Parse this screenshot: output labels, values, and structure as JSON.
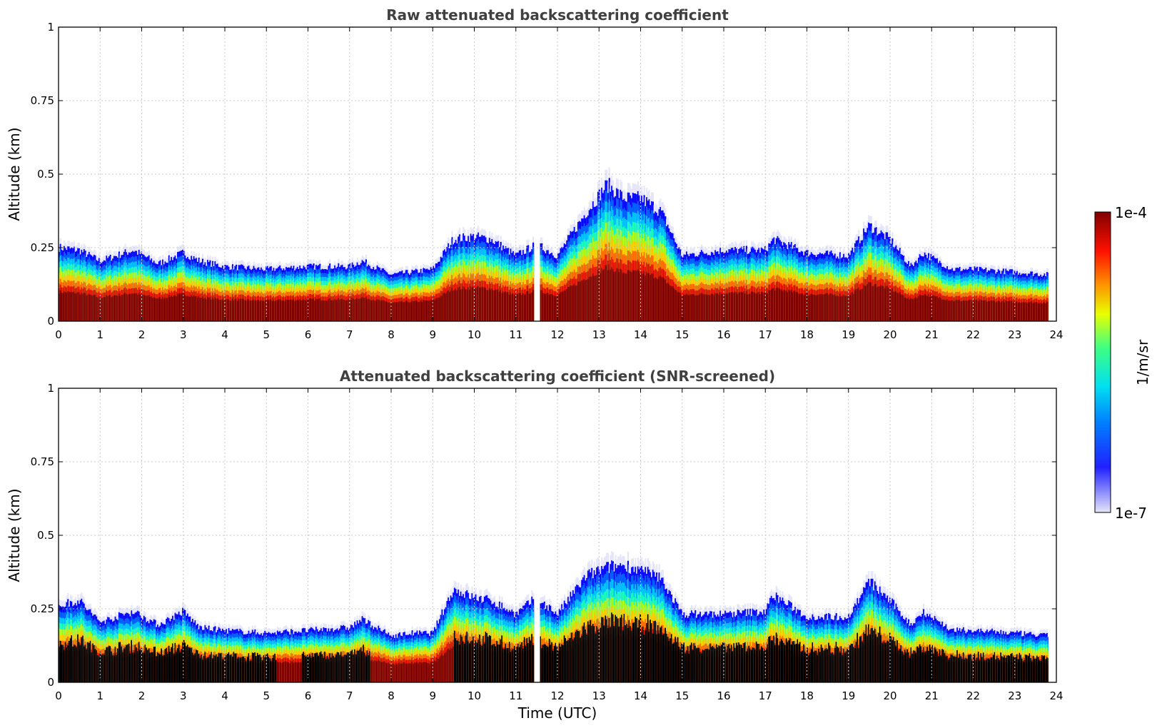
{
  "chart_data": [
    {
      "type": "heatmap",
      "title": "Raw attenuated backscattering coefficient",
      "xlabel": "",
      "ylabel": "Altitude (km)",
      "xlim": [
        0,
        24
      ],
      "ylim": [
        0,
        1
      ],
      "x_ticks": [
        "0",
        "1",
        "2",
        "3",
        "4",
        "5",
        "6",
        "7",
        "8",
        "9",
        "10",
        "11",
        "12",
        "13",
        "14",
        "15",
        "16",
        "17",
        "18",
        "19",
        "20",
        "21",
        "22",
        "23",
        "24"
      ],
      "y_ticks": [
        "0",
        "0.25",
        "0.5",
        "0.75",
        "1"
      ],
      "grid": true,
      "screened": false,
      "data_gap_hours": [
        11.4,
        11.55
      ],
      "data_end_hour": 23.8,
      "layer_top_km": {
        "hours": [
          0,
          0.5,
          1,
          1.8,
          2.4,
          3,
          3.4,
          4,
          5,
          6,
          7,
          7.3,
          8,
          8.5,
          9,
          9.5,
          10,
          10.4,
          11,
          11.5,
          12,
          12.7,
          13.2,
          13.6,
          14,
          14.5,
          15,
          16,
          17,
          17.2,
          18,
          19,
          19.5,
          20,
          20.5,
          20.8,
          21.5,
          22,
          23,
          23.8
        ],
        "values": [
          0.27,
          0.26,
          0.22,
          0.26,
          0.21,
          0.25,
          0.22,
          0.2,
          0.19,
          0.2,
          0.2,
          0.22,
          0.17,
          0.18,
          0.19,
          0.3,
          0.31,
          0.3,
          0.24,
          0.28,
          0.24,
          0.4,
          0.5,
          0.45,
          0.45,
          0.4,
          0.24,
          0.26,
          0.26,
          0.3,
          0.25,
          0.24,
          0.35,
          0.3,
          0.2,
          0.25,
          0.19,
          0.19,
          0.18,
          0.17
        ]
      }
    },
    {
      "type": "heatmap",
      "title": "Attenuated backscattering coefficient (SNR-screened)",
      "xlabel": "Time (UTC)",
      "ylabel": "Altitude (km)",
      "xlim": [
        0,
        24
      ],
      "ylim": [
        0,
        1
      ],
      "x_ticks": [
        "0",
        "1",
        "2",
        "3",
        "4",
        "5",
        "6",
        "7",
        "8",
        "9",
        "10",
        "11",
        "12",
        "13",
        "14",
        "15",
        "16",
        "17",
        "18",
        "19",
        "20",
        "21",
        "22",
        "23",
        "24"
      ],
      "y_ticks": [
        "0",
        "0.25",
        "0.5",
        "0.75",
        "1"
      ],
      "grid": true,
      "screened": true,
      "screened_out_color": "#000000",
      "data_gap_hours": [
        11.4,
        11.55
      ],
      "data_end_hour": 23.8,
      "layer_top_km": {
        "hours": [
          0,
          0.5,
          1,
          1.8,
          2.4,
          3,
          3.4,
          4,
          5,
          6,
          7,
          7.3,
          8,
          8.5,
          9,
          9.5,
          10,
          10.4,
          11,
          11.5,
          12,
          12.7,
          13.2,
          13.6,
          14,
          14.5,
          15,
          16,
          17,
          17.2,
          18,
          19,
          19.5,
          20,
          20.5,
          20.8,
          21.5,
          22,
          23,
          23.8
        ],
        "values": [
          0.28,
          0.3,
          0.22,
          0.26,
          0.21,
          0.26,
          0.2,
          0.19,
          0.18,
          0.19,
          0.2,
          0.23,
          0.17,
          0.18,
          0.18,
          0.34,
          0.31,
          0.3,
          0.25,
          0.31,
          0.25,
          0.39,
          0.42,
          0.43,
          0.41,
          0.38,
          0.25,
          0.25,
          0.26,
          0.32,
          0.24,
          0.24,
          0.37,
          0.3,
          0.21,
          0.26,
          0.19,
          0.19,
          0.18,
          0.17
        ]
      }
    }
  ],
  "colorbar": {
    "label": "1/m/sr",
    "max_label": "1e-4",
    "min_label": "1e-7",
    "scale": "log",
    "colors": [
      "#e6e6fa",
      "#0000ff",
      "#00c8ff",
      "#00ffb0",
      "#ffff00",
      "#ff8000",
      "#ff0000",
      "#800000"
    ]
  }
}
